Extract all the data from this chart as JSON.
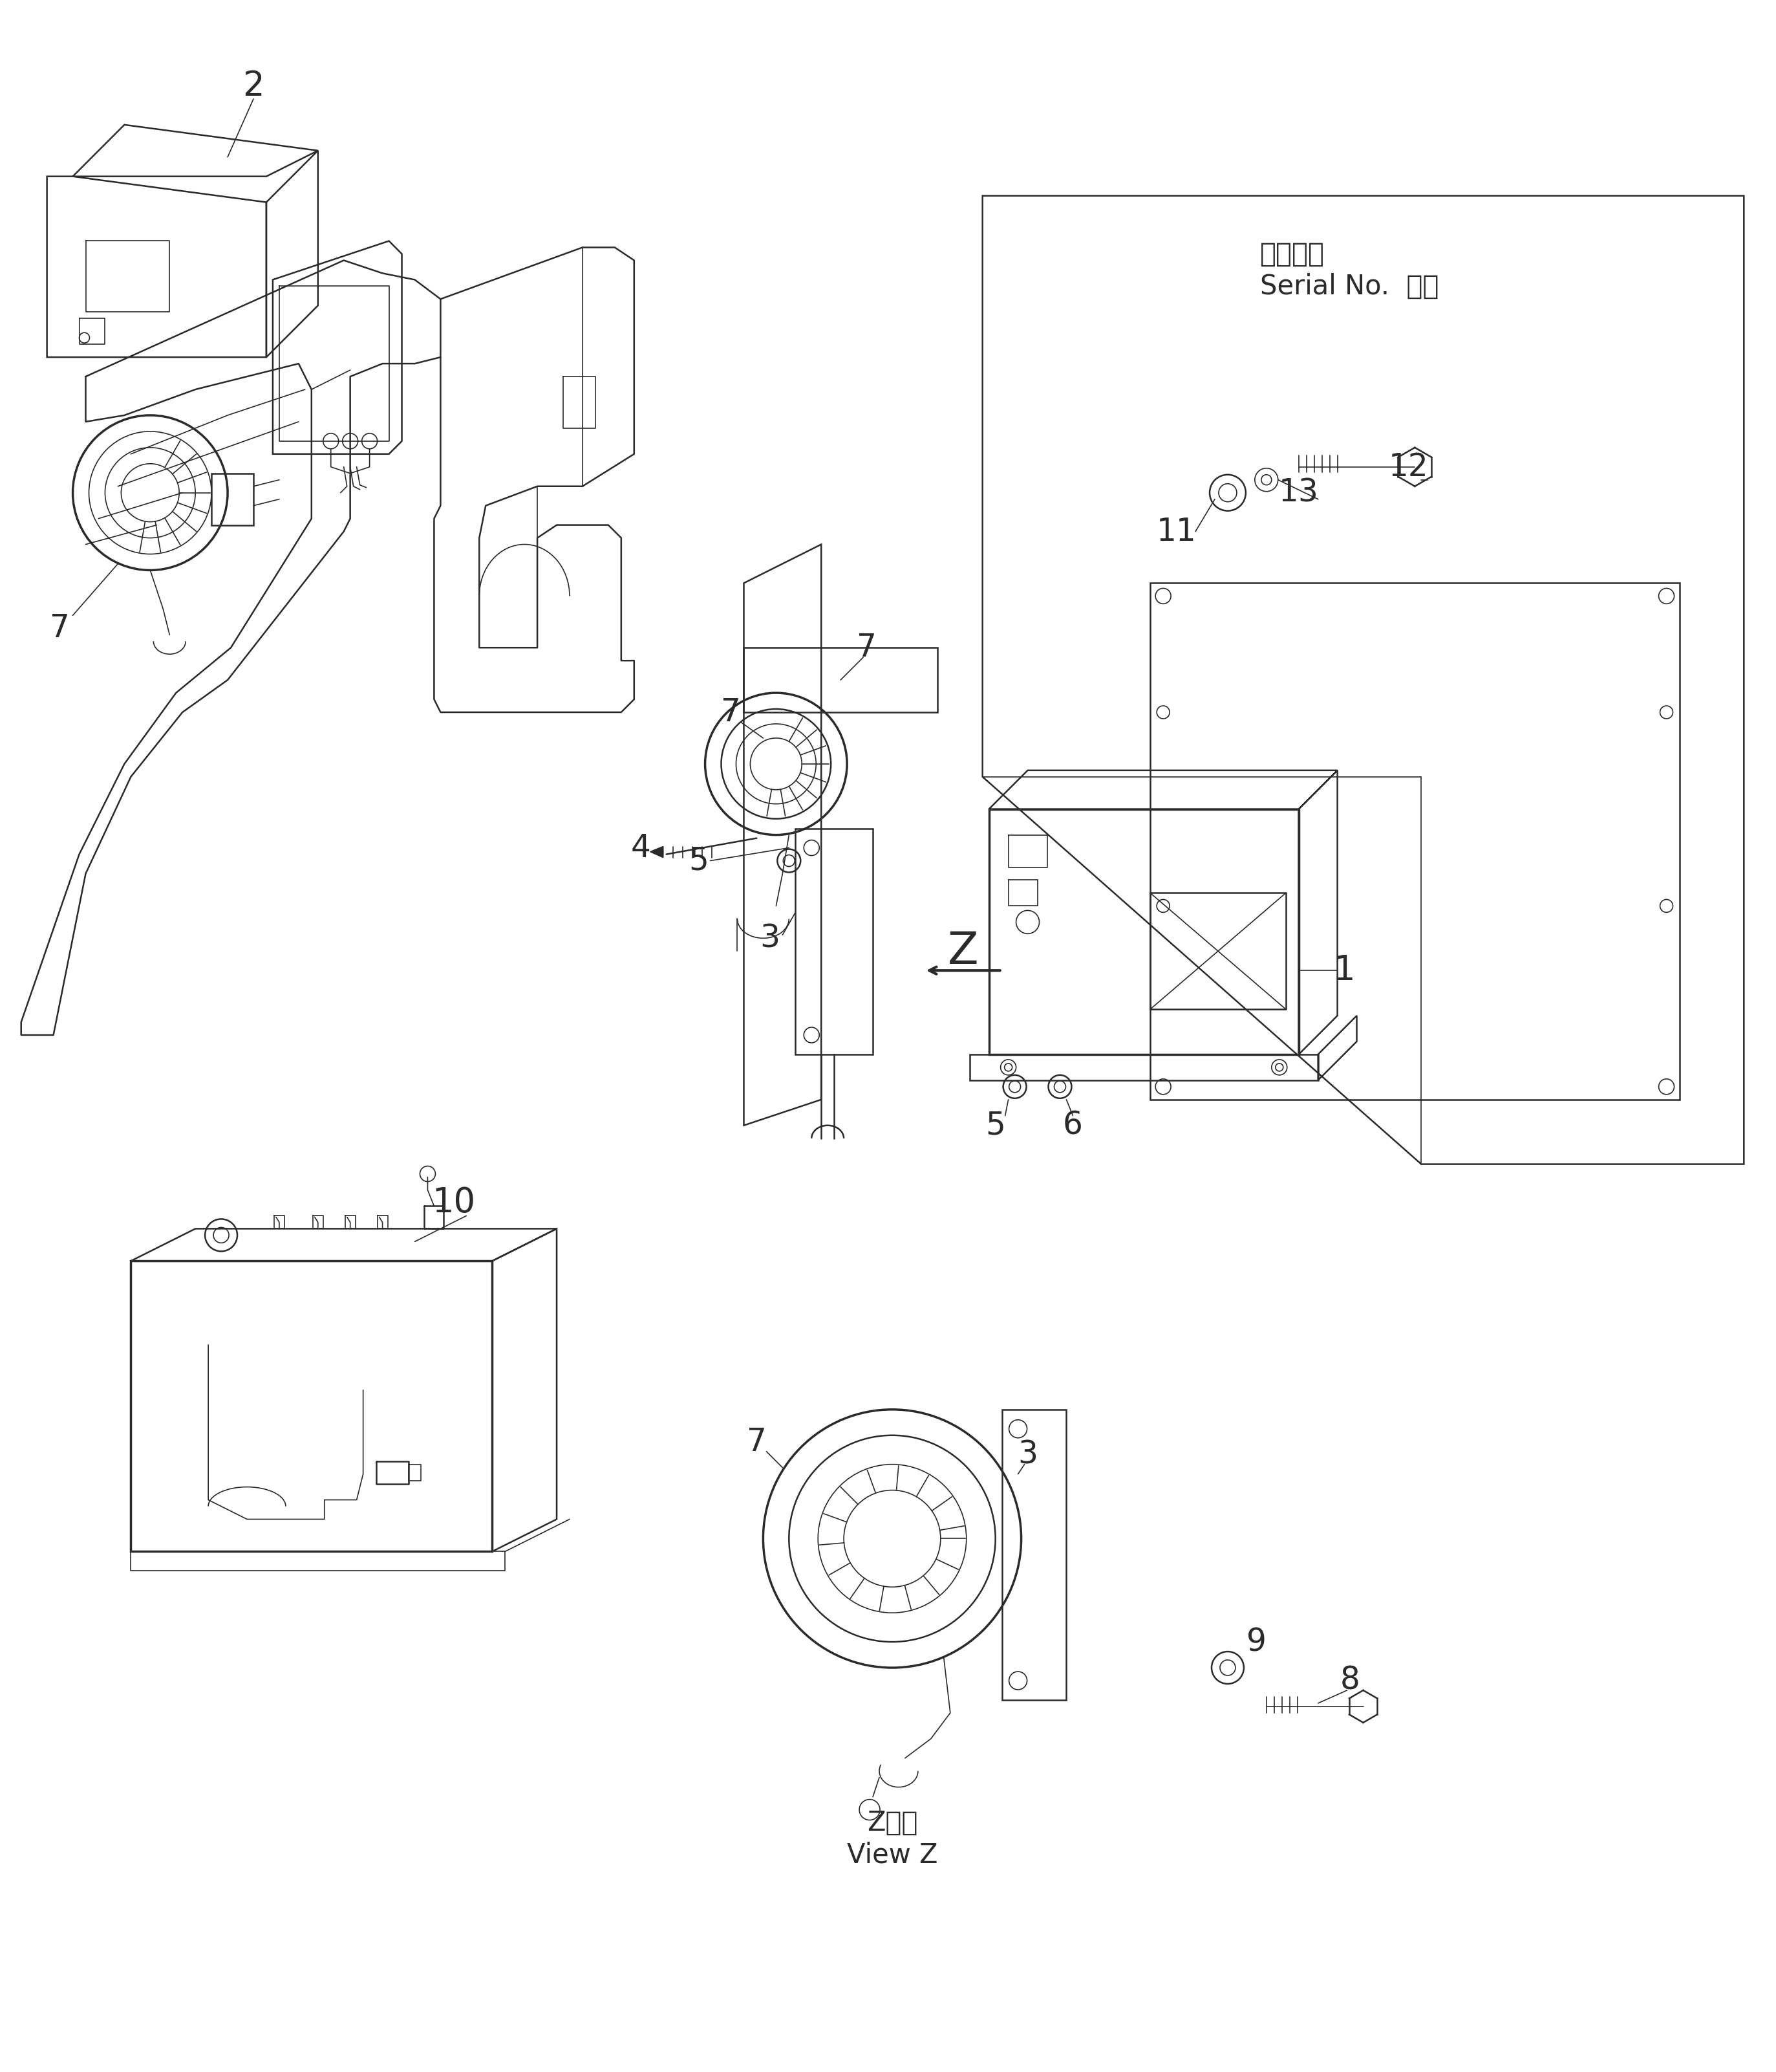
{
  "bg_color": "#ffffff",
  "lc": "#2a2a2a",
  "lw_thin": 1.2,
  "lw_med": 1.8,
  "lw_thick": 2.5,
  "fig_w": 27.47,
  "fig_h": 32.03,
  "serial1": "適用号機",
  "serial2": "Serial No.  ・～",
  "viewz1": "Z　視",
  "viewz2": "View Z"
}
